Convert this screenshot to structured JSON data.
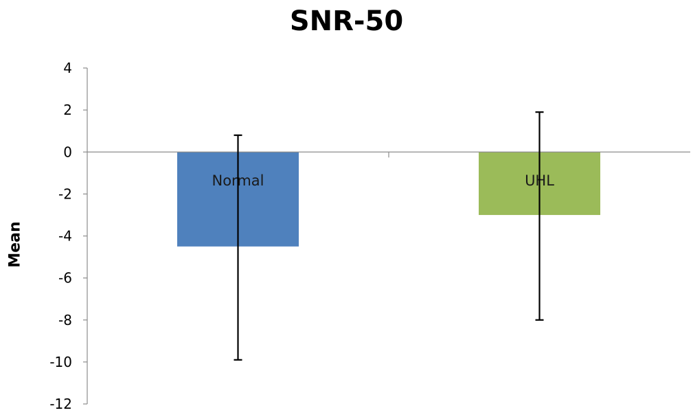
{
  "chart_data": {
    "type": "bar",
    "title": "SNR-50",
    "xlabel": "",
    "ylabel": "Mean",
    "categories": [
      "Normal",
      "UHL"
    ],
    "series": [
      {
        "values": [
          -4.5,
          -3.0
        ],
        "error_low": [
          -9.9,
          -8.0
        ],
        "error_high": [
          0.8,
          1.9
        ]
      }
    ],
    "ylim": [
      -12,
      4
    ],
    "yticks": [
      4,
      2,
      0,
      -2,
      -4,
      -6,
      -8,
      -10,
      -12
    ],
    "ytick_labels": [
      "4",
      "2",
      "0",
      "-2",
      "-4",
      "-6",
      "-8",
      "-10",
      "-12"
    ],
    "data_labels": [
      "Normal",
      "UHL"
    ],
    "colors": [
      "#4F81BD",
      "#9BBB59"
    ],
    "grid": false,
    "legend": "none"
  }
}
